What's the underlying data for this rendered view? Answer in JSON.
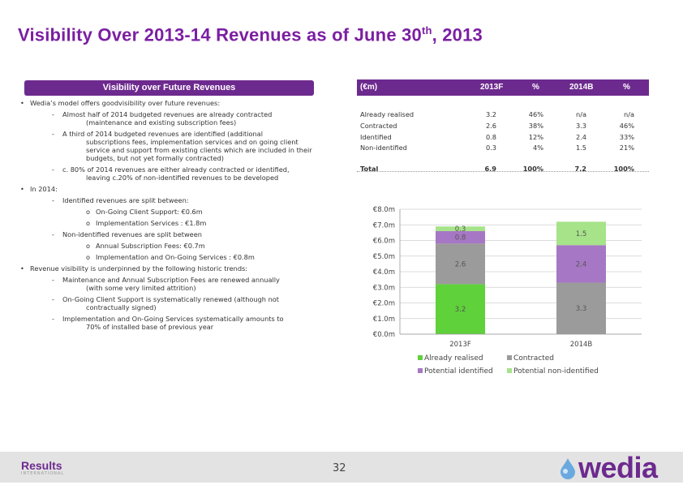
{
  "title": {
    "main": "Visibility Over 2013-14 Revenues as of June 30",
    "sup": "th",
    "suffix": ", 2013"
  },
  "panel": {
    "header": "Visibility over Future Revenues",
    "lines": [
      {
        "level": 1,
        "marker": "•",
        "text": "Wedia’s model offers goodvisibility over future revenues:"
      },
      {
        "level": 2,
        "marker": "-",
        "text": "Almost half of 2014 budgeted revenues are already contracted"
      },
      {
        "level": 3,
        "marker": "",
        "text": "(maintenance and existing subscription fees)"
      },
      {
        "level": 2,
        "marker": "-",
        "text": "A third of 2014 budgeted revenues are identified (additional"
      },
      {
        "level": 3,
        "marker": "",
        "text": "subscriptions fees, implementation services and on going client"
      },
      {
        "level": 3,
        "marker": "",
        "text": "service and support from existing clients which are included in their"
      },
      {
        "level": 3,
        "marker": "",
        "text": "budgets, but not yet formally contracted)"
      },
      {
        "level": 2,
        "marker": "-",
        "text": "c. 80% of 2014 revenues are either already contracted or identified,"
      },
      {
        "level": 3,
        "marker": "",
        "text": "leaving c.20% of non-identified revenues to be developed"
      },
      {
        "level": 1,
        "marker": "•",
        "text": "In 2014:"
      },
      {
        "level": 2,
        "marker": "-",
        "text": "Identified revenues are split between:"
      },
      {
        "level": 4,
        "marker": "o",
        "text": "On-Going Client Support: €0.6m"
      },
      {
        "level": 4,
        "marker": "o",
        "text": "Implementation Services : €1.8m"
      },
      {
        "level": 2,
        "marker": "-",
        "text": "Non-identified revenues are split between"
      },
      {
        "level": 4,
        "marker": "o",
        "text": "Annual Subscription Fees: €0.7m"
      },
      {
        "level": 4,
        "marker": "o",
        "text": "Implementation and On-Going Services :  €0.8m"
      },
      {
        "level": 1,
        "marker": "•",
        "text": "Revenue visibility is underpinned by the following historic trends:"
      },
      {
        "level": 2,
        "marker": "-",
        "text": "Maintenance and Annual Subscription Fees are renewed annually"
      },
      {
        "level": 3,
        "marker": "",
        "text": "(with some very limited attrition)"
      },
      {
        "level": 2,
        "marker": "-",
        "text": "On-Going Client Support is systematically renewed (although not"
      },
      {
        "level": 3,
        "marker": "",
        "text": "contractually signed)"
      },
      {
        "level": 2,
        "marker": "-",
        "text": "Implementation  and On-Going Services systematically amounts to"
      },
      {
        "level": 3,
        "marker": "",
        "text": "70% of installed base of previous year"
      }
    ]
  },
  "table": {
    "headers": [
      "(€m)",
      "2013F",
      "%",
      "2014B",
      "%"
    ],
    "rows": [
      [
        "Already realised",
        "3.2",
        "46%",
        "n/a",
        "n/a"
      ],
      [
        "Contracted",
        "2.6",
        "38%",
        "3.3",
        "46%"
      ],
      [
        "Identified",
        "0.8",
        "12%",
        "2.4",
        "33%"
      ],
      [
        "Non-identified",
        "0.3",
        "4%",
        "1.5",
        "21%"
      ]
    ],
    "total": [
      "Total",
      "6.9",
      "100%",
      "7.2",
      "100%"
    ]
  },
  "chart_data": {
    "type": "bar",
    "stacked": true,
    "categories": [
      "2013F",
      "2014B"
    ],
    "series": [
      {
        "name": "Already realised",
        "values": [
          3.2,
          0
        ],
        "labels": [
          "3.2",
          ""
        ],
        "color": "#5fd13a"
      },
      {
        "name": "Contracted",
        "values": [
          2.6,
          3.3
        ],
        "labels": [
          "2.6",
          "3.3"
        ],
        "color": "#9b9b9b"
      },
      {
        "name": "Potential identified",
        "values": [
          0.8,
          2.4
        ],
        "labels": [
          "0.8",
          "2.4"
        ],
        "color": "#a677c4"
      },
      {
        "name": "Potential non-identified",
        "values": [
          0.3,
          1.5
        ],
        "labels": [
          "0.3",
          "1.5"
        ],
        "color": "#a6e389"
      }
    ],
    "ylim": [
      0,
      8
    ],
    "yticks": [
      "€0.0m",
      "€1.0m",
      "€2.0m",
      "€3.0m",
      "€4.0m",
      "€5.0m",
      "€6.0m",
      "€7.0m",
      "€8.0m"
    ],
    "grid": true,
    "legend": "bottom"
  },
  "footer": {
    "brand": "Results",
    "brand_sub": "INTERNATIONAL",
    "page": "32",
    "logo": "wedia"
  },
  "colors": {
    "purple": "#6d2a8e",
    "title": "#7b1fa2"
  }
}
